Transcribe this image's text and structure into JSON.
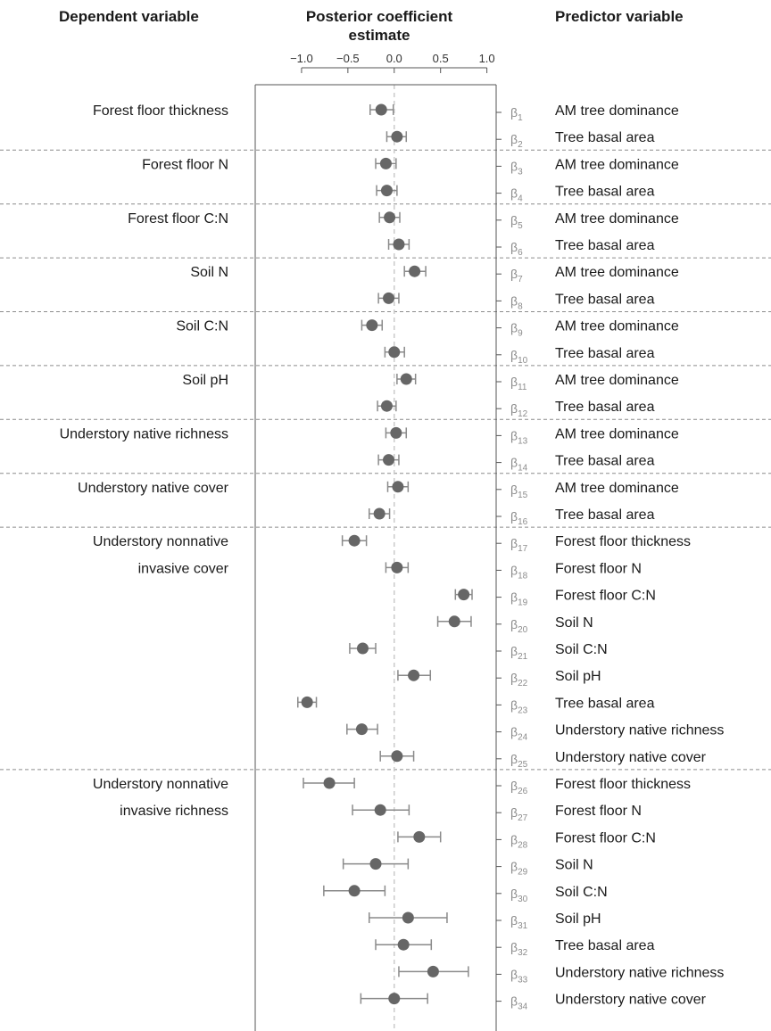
{
  "headers": {
    "dependent": "Dependent variable",
    "posterior_line1": "Posterior coefficient",
    "posterior_line2": "estimate",
    "predictor": "Predictor variable"
  },
  "colors": {
    "point": "#666666",
    "whisker": "#8a8a8a",
    "zero_line": "#cccccc",
    "separator": "#8c8c8c",
    "axis": "#555555",
    "beta_label": "#8c8c8c"
  },
  "chart_data": {
    "type": "scatter",
    "orientation": "horizontal",
    "title": "",
    "xlabel": "Posterior coefficient estimate",
    "ylabel": "",
    "xlim": [
      -1.5,
      1.1
    ],
    "xticks": [
      -1.0,
      -0.5,
      0.0,
      0.5,
      1.0
    ],
    "xtick_labels": [
      "−1.0",
      "−0.5",
      "0.0",
      "0.5",
      "1.0"
    ],
    "reference_line": 0,
    "groups": [
      {
        "dependent": "Forest floor thickness",
        "rows": [
          {
            "beta": "1",
            "predictor": "AM tree dominance",
            "mean": -0.14,
            "low": -0.26,
            "high": -0.01
          },
          {
            "beta": "2",
            "predictor": "Tree basal area",
            "mean": 0.03,
            "low": -0.08,
            "high": 0.13
          }
        ]
      },
      {
        "dependent": "Forest floor N",
        "rows": [
          {
            "beta": "3",
            "predictor": "AM tree dominance",
            "mean": -0.09,
            "low": -0.2,
            "high": 0.02
          },
          {
            "beta": "4",
            "predictor": "Tree basal area",
            "mean": -0.08,
            "low": -0.19,
            "high": 0.03
          }
        ]
      },
      {
        "dependent": "Forest floor C:N",
        "rows": [
          {
            "beta": "5",
            "predictor": "AM tree dominance",
            "mean": -0.05,
            "low": -0.16,
            "high": 0.06
          },
          {
            "beta": "6",
            "predictor": "Tree basal area",
            "mean": 0.05,
            "low": -0.06,
            "high": 0.16
          }
        ]
      },
      {
        "dependent": "Soil N",
        "rows": [
          {
            "beta": "7",
            "predictor": "AM tree dominance",
            "mean": 0.22,
            "low": 0.11,
            "high": 0.34
          },
          {
            "beta": "8",
            "predictor": "Tree basal area",
            "mean": -0.06,
            "low": -0.17,
            "high": 0.05
          }
        ]
      },
      {
        "dependent": "Soil C:N",
        "rows": [
          {
            "beta": "9",
            "predictor": "AM tree dominance",
            "mean": -0.24,
            "low": -0.35,
            "high": -0.13
          },
          {
            "beta": "10",
            "predictor": "Tree basal area",
            "mean": 0.0,
            "low": -0.1,
            "high": 0.11
          }
        ]
      },
      {
        "dependent": "Soil pH",
        "rows": [
          {
            "beta": "11",
            "predictor": "AM tree dominance",
            "mean": 0.13,
            "low": 0.03,
            "high": 0.23
          },
          {
            "beta": "12",
            "predictor": "Tree basal area",
            "mean": -0.08,
            "low": -0.18,
            "high": 0.02
          }
        ]
      },
      {
        "dependent": "Understory native richness",
        "rows": [
          {
            "beta": "13",
            "predictor": "AM tree dominance",
            "mean": 0.02,
            "low": -0.09,
            "high": 0.13
          },
          {
            "beta": "14",
            "predictor": "Tree basal area",
            "mean": -0.06,
            "low": -0.17,
            "high": 0.05
          }
        ]
      },
      {
        "dependent": "Understory native cover",
        "rows": [
          {
            "beta": "15",
            "predictor": "AM tree dominance",
            "mean": 0.04,
            "low": -0.07,
            "high": 0.15
          },
          {
            "beta": "16",
            "predictor": "Tree basal area",
            "mean": -0.16,
            "low": -0.27,
            "high": -0.05
          }
        ]
      },
      {
        "dependent": [
          "Understory nonnative",
          "invasive cover"
        ],
        "rows": [
          {
            "beta": "17",
            "predictor": "Forest floor thickness",
            "mean": -0.43,
            "low": -0.56,
            "high": -0.3
          },
          {
            "beta": "18",
            "predictor": "Forest floor N",
            "mean": 0.03,
            "low": -0.09,
            "high": 0.15
          },
          {
            "beta": "19",
            "predictor": "Forest floor C:N",
            "mean": 0.75,
            "low": 0.66,
            "high": 0.84
          },
          {
            "beta": "20",
            "predictor": "Soil N",
            "mean": 0.65,
            "low": 0.47,
            "high": 0.83
          },
          {
            "beta": "21",
            "predictor": "Soil C:N",
            "mean": -0.34,
            "low": -0.48,
            "high": -0.2
          },
          {
            "beta": "22",
            "predictor": "Soil pH",
            "mean": 0.21,
            "low": 0.04,
            "high": 0.39
          },
          {
            "beta": "23",
            "predictor": "Tree basal area",
            "mean": -0.94,
            "low": -1.04,
            "high": -0.84
          },
          {
            "beta": "24",
            "predictor": "Understory native richness",
            "mean": -0.35,
            "low": -0.51,
            "high": -0.18
          },
          {
            "beta": "25",
            "predictor": "Understory native cover",
            "mean": 0.03,
            "low": -0.15,
            "high": 0.21
          }
        ]
      },
      {
        "dependent": [
          "Understory nonnative",
          "invasive richness"
        ],
        "rows": [
          {
            "beta": "26",
            "predictor": "Forest floor thickness",
            "mean": -0.7,
            "low": -0.98,
            "high": -0.43
          },
          {
            "beta": "27",
            "predictor": "Forest floor N",
            "mean": -0.15,
            "low": -0.45,
            "high": 0.16
          },
          {
            "beta": "28",
            "predictor": "Forest floor C:N",
            "mean": 0.27,
            "low": 0.04,
            "high": 0.5
          },
          {
            "beta": "29",
            "predictor": "Soil N",
            "mean": -0.2,
            "low": -0.55,
            "high": 0.15
          },
          {
            "beta": "30",
            "predictor": "Soil C:N",
            "mean": -0.43,
            "low": -0.76,
            "high": -0.1
          },
          {
            "beta": "31",
            "predictor": "Soil pH",
            "mean": 0.15,
            "low": -0.27,
            "high": 0.57
          },
          {
            "beta": "32",
            "predictor": "Tree basal area",
            "mean": 0.1,
            "low": -0.2,
            "high": 0.4
          },
          {
            "beta": "33",
            "predictor": "Understory native richness",
            "mean": 0.42,
            "low": 0.05,
            "high": 0.8
          },
          {
            "beta": "34",
            "predictor": "Understory native cover",
            "mean": 0.0,
            "low": -0.36,
            "high": 0.36
          }
        ]
      }
    ]
  }
}
